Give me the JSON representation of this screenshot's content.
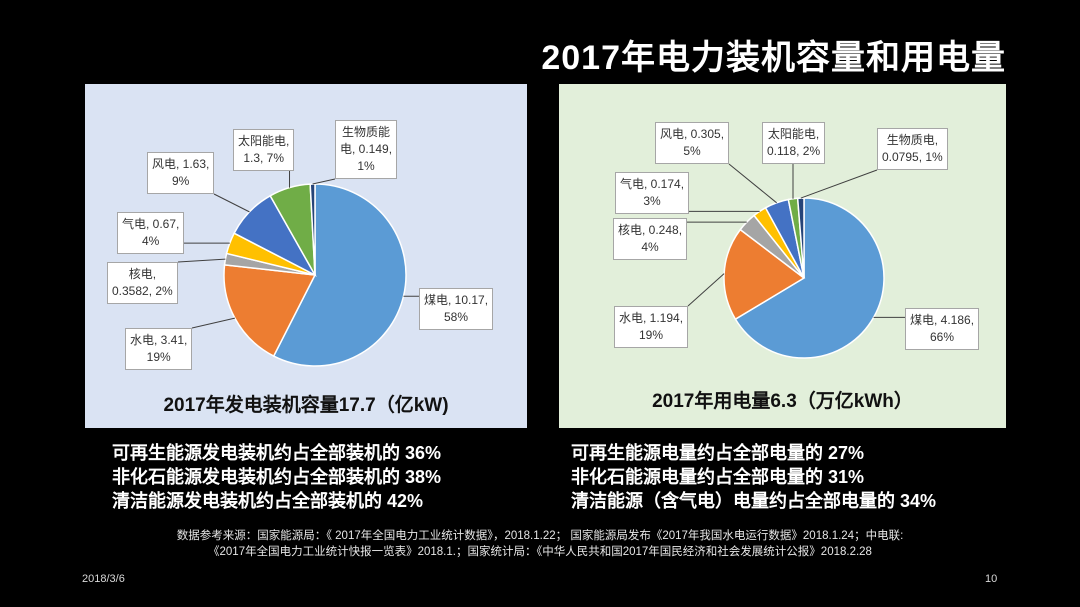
{
  "slide": {
    "title": "2017年电力装机容量和用电量",
    "date": "2018/3/6",
    "page_number": "10",
    "sources": [
      "数据参考来源：国家能源局：《 2017年全国电力工业统计数据》，2018.1.22； 国家能源局发布《2017年我国水电运行数据》2018.1.24；中电联:",
      "《2017年全国电力工业统计快报一览表》2018.1.；国家统计局：《中华人民共和国2017年国民经济和社会发展统计公报》2018.2.28"
    ]
  },
  "stats": {
    "left": [
      "可再生能源发电装机约占全部装机的 36%",
      "非化石能源发电装机约占全部装机的 38%",
      "清洁能源发电装机约占全部装机的 42%"
    ],
    "right": [
      "可再生能源电量约占全部电量的 27%",
      "非化石能源电量约占全部电量的 31%",
      "清洁能源（含气电）电量约占全部电量的 34%"
    ]
  },
  "chart_data": [
    {
      "type": "pie",
      "title": "2017年发电装机容量17.7（亿kW)",
      "unit": "亿kW",
      "slices": [
        {
          "name": "煤电",
          "value": 10.17,
          "percent": 58,
          "color": "#5b9bd5",
          "label_lines": [
            "煤电, 10.17,",
            "58%"
          ]
        },
        {
          "name": "水电",
          "value": 3.41,
          "percent": 19,
          "color": "#ed7d31",
          "label_lines": [
            "水电, 3.41,",
            "19%"
          ]
        },
        {
          "name": "核电",
          "value": 0.3582,
          "percent": 2,
          "color": "#a5a5a5",
          "label_lines": [
            "核电,",
            "0.3582, 2%"
          ]
        },
        {
          "name": "气电",
          "value": 0.67,
          "percent": 4,
          "color": "#ffc000",
          "label_lines": [
            "气电, 0.67,",
            "4%"
          ]
        },
        {
          "name": "风电",
          "value": 1.63,
          "percent": 9,
          "color": "#4472c4",
          "label_lines": [
            "风电, 1.63,",
            "9%"
          ]
        },
        {
          "name": "太阳能电",
          "value": 1.3,
          "percent": 7,
          "color": "#70ad47",
          "label_lines": [
            "太阳能电,",
            "1.3, 7%"
          ]
        },
        {
          "name": "生物质能电",
          "value": 0.149,
          "percent": 1,
          "color": "#264478",
          "label_lines": [
            "生物质能",
            "电, 0.149,",
            "1%"
          ]
        }
      ]
    },
    {
      "type": "pie",
      "title": "2017年用电量6.3（万亿kWh）",
      "unit": "万亿kWh",
      "slices": [
        {
          "name": "煤电",
          "value": 4.186,
          "percent": 66,
          "color": "#5b9bd5",
          "label_lines": [
            "煤电, 4.186,",
            "66%"
          ]
        },
        {
          "name": "水电",
          "value": 1.194,
          "percent": 19,
          "color": "#ed7d31",
          "label_lines": [
            "水电, 1.194,",
            "19%"
          ]
        },
        {
          "name": "核电",
          "value": 0.248,
          "percent": 4,
          "color": "#a5a5a5",
          "label_lines": [
            "核电, 0.248,",
            "4%"
          ]
        },
        {
          "name": "气电",
          "value": 0.174,
          "percent": 3,
          "color": "#ffc000",
          "label_lines": [
            "气电, 0.174,",
            "3%"
          ]
        },
        {
          "name": "风电",
          "value": 0.305,
          "percent": 5,
          "color": "#4472c4",
          "label_lines": [
            "风电, 0.305,",
            "5%"
          ]
        },
        {
          "name": "太阳能电",
          "value": 0.118,
          "percent": 2,
          "color": "#70ad47",
          "label_lines": [
            "太阳能电,",
            "0.118, 2%"
          ]
        },
        {
          "name": "生物质电",
          "value": 0.0795,
          "percent": 1,
          "color": "#264478",
          "label_lines": [
            "生物质电,",
            "0.0795, 1%"
          ]
        }
      ]
    }
  ]
}
